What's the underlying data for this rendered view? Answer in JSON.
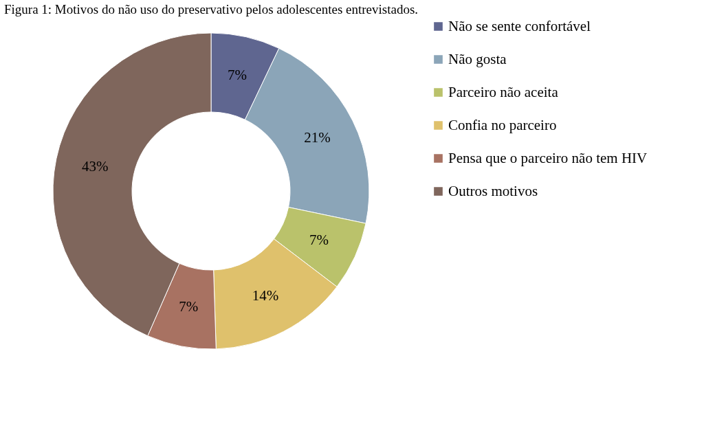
{
  "chart_data": {
    "type": "donut",
    "title": "Figura 1: Motivos do não uso do preservativo pelos adolescentes entrevistados.",
    "categories": [
      "Não se sente confortável",
      "Não gosta",
      "Parceiro não aceita",
      "Confia no parceiro",
      "Pensa que o parceiro não tem HIV",
      "Outros motivos"
    ],
    "values": [
      7,
      21,
      7,
      14,
      7,
      43
    ],
    "value_labels": [
      "7%",
      "21%",
      "7%",
      "14%",
      "7%",
      "43%"
    ],
    "colors": [
      "#5f6690",
      "#8ba5b8",
      "#bac26b",
      "#dfc16c",
      "#a87262",
      "#7f665c"
    ],
    "legend": "right"
  }
}
